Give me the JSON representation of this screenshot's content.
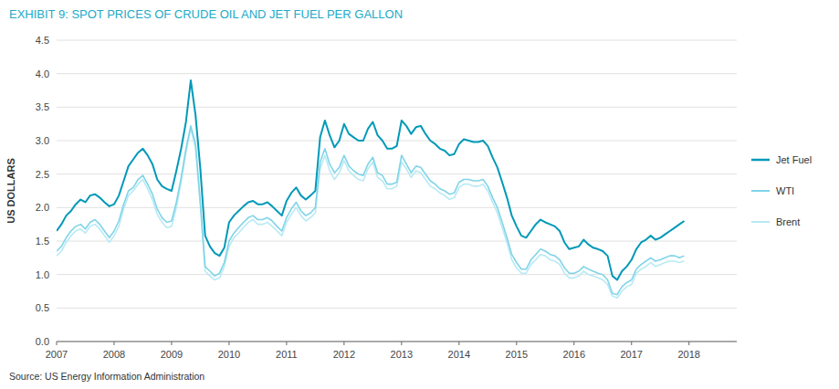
{
  "chart_data": {
    "type": "line",
    "title": "EXHIBIT 9: SPOT PRICES OF CRUDE OIL AND JET FUEL PER GALLON",
    "ylabel": "US DOLLARS",
    "source": "Source: US Energy Information Administration",
    "xlim": [
      2007.0,
      2018.83
    ],
    "ylim": [
      0.0,
      4.5
    ],
    "xticks": [
      2007,
      2008,
      2009,
      2010,
      2011,
      2012,
      2013,
      2014,
      2015,
      2016,
      2017,
      2018
    ],
    "yticks": [
      {
        "value": 0.0,
        "label": "0.0"
      },
      0.5,
      {
        "value": 1.0,
        "label": "1.0"
      },
      1.5,
      {
        "value": 2.0,
        "label": "2.0"
      },
      2.5,
      {
        "value": 3.0,
        "label": "3.0"
      },
      3.5,
      {
        "value": 4.0,
        "label": "4.0"
      },
      4.5
    ],
    "grid": true,
    "legend": "right",
    "x": [
      2007.0,
      2007.0833333333333,
      2007.1666666666667,
      2007.25,
      2007.3333333333333,
      2007.4166666666667,
      2007.5,
      2007.5833333333333,
      2007.6666666666667,
      2007.75,
      2007.8333333333333,
      2007.9166666666667,
      2008.0,
      2008.0833333333333,
      2008.1666666666667,
      2008.25,
      2008.3333333333333,
      2008.4166666666667,
      2008.5,
      2008.5833333333333,
      2008.6666666666667,
      2008.75,
      2008.8333333333333,
      2008.9166666666667,
      2009.0,
      2009.0833333333333,
      2009.1666666666667,
      2009.25,
      2009.3333333333333,
      2009.4166666666667,
      2009.5,
      2009.5833333333333,
      2009.6666666666667,
      2009.75,
      2009.8333333333333,
      2009.9166666666667,
      2010.0,
      2010.0833333333333,
      2010.1666666666667,
      2010.25,
      2010.3333333333333,
      2010.4166666666667,
      2010.5,
      2010.5833333333333,
      2010.6666666666667,
      2010.75,
      2010.8333333333333,
      2010.9166666666667,
      2011.0,
      2011.0833333333333,
      2011.1666666666667,
      2011.25,
      2011.3333333333333,
      2011.4166666666667,
      2011.5,
      2011.5833333333333,
      2011.6666666666667,
      2011.75,
      2011.8333333333333,
      2011.9166666666667,
      2012.0,
      2012.0833333333333,
      2012.1666666666667,
      2012.25,
      2012.3333333333333,
      2012.4166666666667,
      2012.5,
      2012.5833333333333,
      2012.6666666666667,
      2012.75,
      2012.8333333333333,
      2012.9166666666667,
      2013.0,
      2013.0833333333333,
      2013.1666666666667,
      2013.25,
      2013.3333333333333,
      2013.4166666666667,
      2013.5,
      2013.5833333333333,
      2013.6666666666667,
      2013.75,
      2013.8333333333333,
      2013.9166666666667,
      2014.0,
      2014.0833333333333,
      2014.1666666666667,
      2014.25,
      2014.3333333333333,
      2014.4166666666667,
      2014.5,
      2014.5833333333333,
      2014.6666666666667,
      2014.75,
      2014.8333333333333,
      2014.9166666666667,
      2015.0,
      2015.0833333333333,
      2015.1666666666667,
      2015.25,
      2015.3333333333333,
      2015.4166666666667,
      2015.5,
      2015.5833333333333,
      2015.6666666666667,
      2015.75,
      2015.8333333333333,
      2015.9166666666667,
      2016.0,
      2016.0833333333333,
      2016.1666666666667,
      2016.25,
      2016.3333333333333,
      2016.4166666666667,
      2016.5,
      2016.5833333333333,
      2016.6666666666667,
      2016.75,
      2016.8333333333333,
      2016.9166666666667,
      2017.0,
      2017.0833333333333,
      2017.1666666666667,
      2017.25,
      2017.3333333333333,
      2017.4166666666667,
      2017.5,
      2017.5833333333333,
      2017.6666666666667,
      2017.75,
      2017.8333333333333,
      2017.9166666666667
    ],
    "series": [
      {
        "name": "Jet Fuel",
        "color": "#0099b8",
        "values": [
          1.65,
          1.75,
          1.88,
          1.95,
          2.05,
          2.12,
          2.08,
          2.18,
          2.2,
          2.15,
          2.08,
          2.02,
          2.05,
          2.18,
          2.4,
          2.62,
          2.72,
          2.82,
          2.88,
          2.78,
          2.65,
          2.42,
          2.32,
          2.28,
          2.25,
          2.55,
          2.88,
          3.28,
          3.9,
          3.38,
          2.58,
          1.58,
          1.42,
          1.32,
          1.28,
          1.4,
          1.78,
          1.88,
          1.95,
          2.02,
          2.08,
          2.1,
          2.05,
          2.05,
          2.08,
          2.02,
          1.95,
          1.88,
          2.1,
          2.22,
          2.3,
          2.18,
          2.12,
          2.18,
          2.25,
          3.05,
          3.3,
          3.08,
          2.9,
          3.0,
          3.25,
          3.1,
          3.05,
          3.0,
          3.0,
          3.18,
          3.28,
          3.08,
          3.0,
          2.88,
          2.88,
          2.92,
          3.3,
          3.22,
          3.1,
          3.2,
          3.22,
          3.1,
          3.0,
          2.95,
          2.88,
          2.85,
          2.78,
          2.8,
          2.95,
          3.02,
          3.0,
          2.98,
          2.98,
          3.0,
          2.92,
          2.75,
          2.6,
          2.38,
          2.15,
          1.88,
          1.72,
          1.58,
          1.55,
          1.65,
          1.75,
          1.82,
          1.78,
          1.75,
          1.72,
          1.65,
          1.48,
          1.38,
          1.4,
          1.42,
          1.52,
          1.45,
          1.4,
          1.38,
          1.35,
          1.28,
          0.98,
          0.92,
          1.05,
          1.12,
          1.22,
          1.38,
          1.48,
          1.52,
          1.58,
          1.52,
          1.55,
          1.6,
          1.65,
          1.7,
          1.75,
          1.8
        ]
      },
      {
        "name": "WTI",
        "color": "#80d4e8",
        "values": [
          1.35,
          1.42,
          1.55,
          1.65,
          1.72,
          1.75,
          1.68,
          1.78,
          1.82,
          1.75,
          1.65,
          1.55,
          1.65,
          1.8,
          2.05,
          2.25,
          2.3,
          2.42,
          2.48,
          2.35,
          2.2,
          1.98,
          1.85,
          1.78,
          1.8,
          2.08,
          2.45,
          2.88,
          3.22,
          2.95,
          2.08,
          1.12,
          1.05,
          0.98,
          1.02,
          1.18,
          1.5,
          1.62,
          1.7,
          1.78,
          1.85,
          1.88,
          1.82,
          1.82,
          1.85,
          1.8,
          1.72,
          1.65,
          1.85,
          1.98,
          2.08,
          1.95,
          1.88,
          1.92,
          2.0,
          2.68,
          2.88,
          2.65,
          2.52,
          2.6,
          2.78,
          2.62,
          2.55,
          2.5,
          2.48,
          2.65,
          2.75,
          2.52,
          2.48,
          2.35,
          2.35,
          2.38,
          2.78,
          2.65,
          2.52,
          2.62,
          2.6,
          2.5,
          2.4,
          2.35,
          2.28,
          2.25,
          2.2,
          2.22,
          2.38,
          2.42,
          2.42,
          2.4,
          2.4,
          2.42,
          2.32,
          2.15,
          2.0,
          1.78,
          1.55,
          1.3,
          1.18,
          1.08,
          1.08,
          1.22,
          1.3,
          1.38,
          1.35,
          1.3,
          1.28,
          1.22,
          1.1,
          1.02,
          1.02,
          1.05,
          1.12,
          1.08,
          1.05,
          1.02,
          1.0,
          0.92,
          0.72,
          0.7,
          0.82,
          0.88,
          0.92,
          1.08,
          1.15,
          1.2,
          1.25,
          1.2,
          1.22,
          1.25,
          1.28,
          1.28,
          1.25,
          1.28
        ]
      },
      {
        "name": "Brent",
        "color": "#b8eaf4",
        "values": [
          1.28,
          1.35,
          1.48,
          1.58,
          1.65,
          1.68,
          1.62,
          1.72,
          1.75,
          1.68,
          1.58,
          1.48,
          1.58,
          1.72,
          1.98,
          2.18,
          2.25,
          2.35,
          2.42,
          2.28,
          2.12,
          1.9,
          1.78,
          1.7,
          1.72,
          2.0,
          2.38,
          2.82,
          3.18,
          2.88,
          2.02,
          1.05,
          0.98,
          0.92,
          0.95,
          1.12,
          1.42,
          1.55,
          1.62,
          1.7,
          1.78,
          1.82,
          1.75,
          1.75,
          1.78,
          1.72,
          1.65,
          1.58,
          1.78,
          1.9,
          2.0,
          1.88,
          1.8,
          1.85,
          1.92,
          2.58,
          2.78,
          2.55,
          2.42,
          2.52,
          2.7,
          2.55,
          2.48,
          2.42,
          2.4,
          2.58,
          2.68,
          2.45,
          2.4,
          2.28,
          2.28,
          2.32,
          2.68,
          2.58,
          2.45,
          2.55,
          2.52,
          2.42,
          2.32,
          2.28,
          2.22,
          2.18,
          2.12,
          2.15,
          2.3,
          2.35,
          2.35,
          2.32,
          2.32,
          2.35,
          2.25,
          2.08,
          1.92,
          1.7,
          1.48,
          1.22,
          1.1,
          1.02,
          1.02,
          1.15,
          1.22,
          1.3,
          1.28,
          1.22,
          1.2,
          1.15,
          1.02,
          0.95,
          0.95,
          0.98,
          1.05,
          1.0,
          0.98,
          0.95,
          0.92,
          0.85,
          0.68,
          0.65,
          0.75,
          0.82,
          0.85,
          1.02,
          1.08,
          1.12,
          1.18,
          1.12,
          1.15,
          1.18,
          1.2,
          1.2,
          1.18,
          1.2
        ]
      }
    ]
  }
}
